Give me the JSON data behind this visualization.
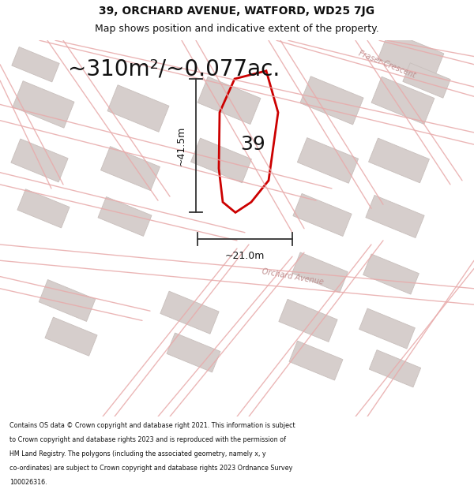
{
  "title_line1": "39, ORCHARD AVENUE, WATFORD, WD25 7JG",
  "title_line2": "Map shows position and indicative extent of the property.",
  "area_text": "~310m²/~0.077ac.",
  "label_number": "39",
  "dim_vertical": "~41.5m",
  "dim_horizontal": "~21.0m",
  "footer_lines": [
    "Contains OS data © Crown copyright and database right 2021. This information is subject",
    "to Crown copyright and database rights 2023 and is reproduced with the permission of",
    "HM Land Registry. The polygons (including the associated geometry, namely x, y",
    "co-ordinates) are subject to Crown copyright and database rights 2023 Ordnance Survey",
    "100026316."
  ],
  "map_bg": "#f9f6f6",
  "plot_color": "#cc0000",
  "road_color": "#e8aaaa",
  "building_fill": "#d6cecc",
  "building_edge": "#c8bfbc",
  "road_label_color": "#c09090",
  "dim_color": "#333333",
  "text_color": "#111111",
  "footer_color": "#111111",
  "title_fontsize": 10,
  "subtitle_fontsize": 9,
  "area_fontsize": 20,
  "label_fontsize": 18,
  "dim_fontsize": 9,
  "road_label_fontsize": 7,
  "footer_fontsize": 5.8
}
